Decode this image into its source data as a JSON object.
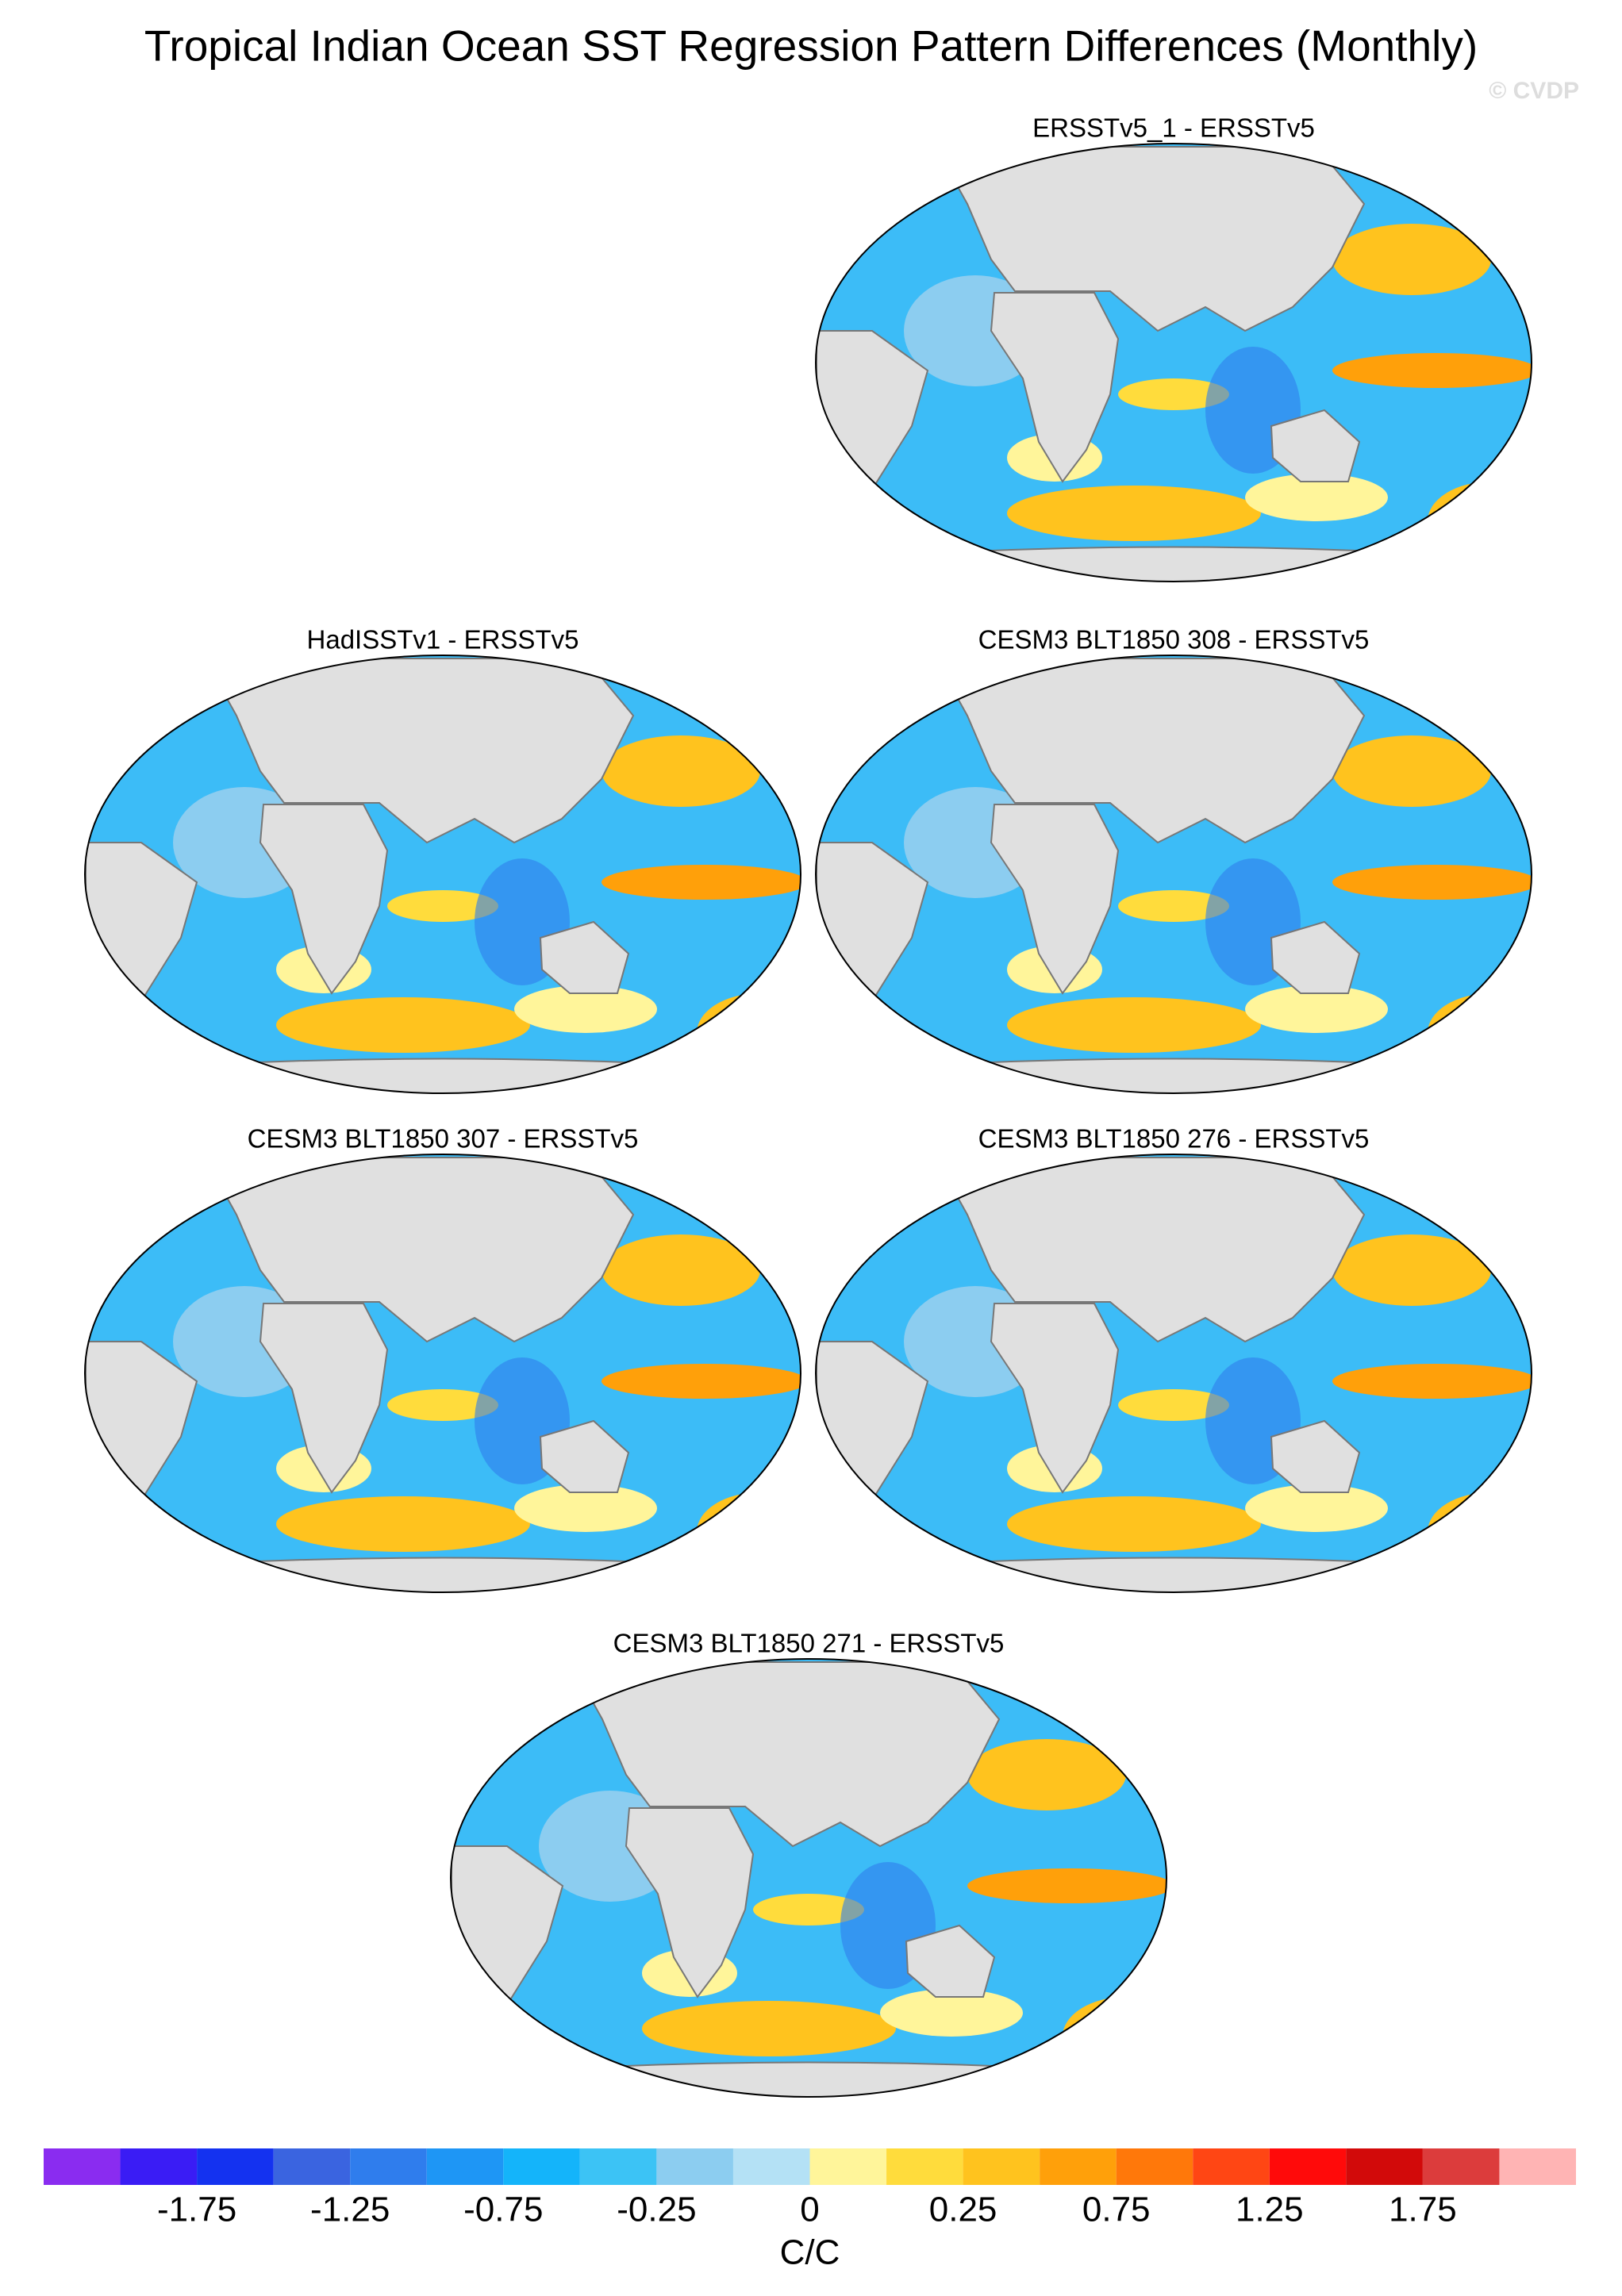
{
  "header": {
    "title": "Tropical Indian Ocean SST Regression Pattern Differences (Monthly)",
    "watermark": "© CVDP"
  },
  "panels": [
    {
      "title": "ERSSTv5_1 - ERSSTv5"
    },
    {
      "title": "HadISSTv1 - ERSSTv5"
    },
    {
      "title": "CESM3 BLT1850 308 - ERSSTv5"
    },
    {
      "title": "CESM3 BLT1850 307 - ERSSTv5"
    },
    {
      "title": "CESM3 BLT1850 276 - ERSSTv5"
    },
    {
      "title": "CESM3 BLT1850 271 - ERSSTv5"
    }
  ],
  "colorbar": {
    "colors": [
      "#8a2cf0",
      "#3a1cf5",
      "#1432f0",
      "#3a64e0",
      "#2f7ded",
      "#1e96f5",
      "#14b4fa",
      "#3cc3f5",
      "#8ccdf0",
      "#b4e1f5",
      "#fff59a",
      "#ffdc3c",
      "#ffc31e",
      "#ffa00a",
      "#ff780a",
      "#ff4614",
      "#ff0a0a",
      "#d20a0a",
      "#dc3c3c",
      "#ffb4b4"
    ],
    "labels": [
      "-1.75",
      "-1.25",
      "-0.75",
      "-0.25",
      "0",
      "0.25",
      "0.75",
      "1.25",
      "1.75"
    ],
    "title": "C/C"
  }
}
